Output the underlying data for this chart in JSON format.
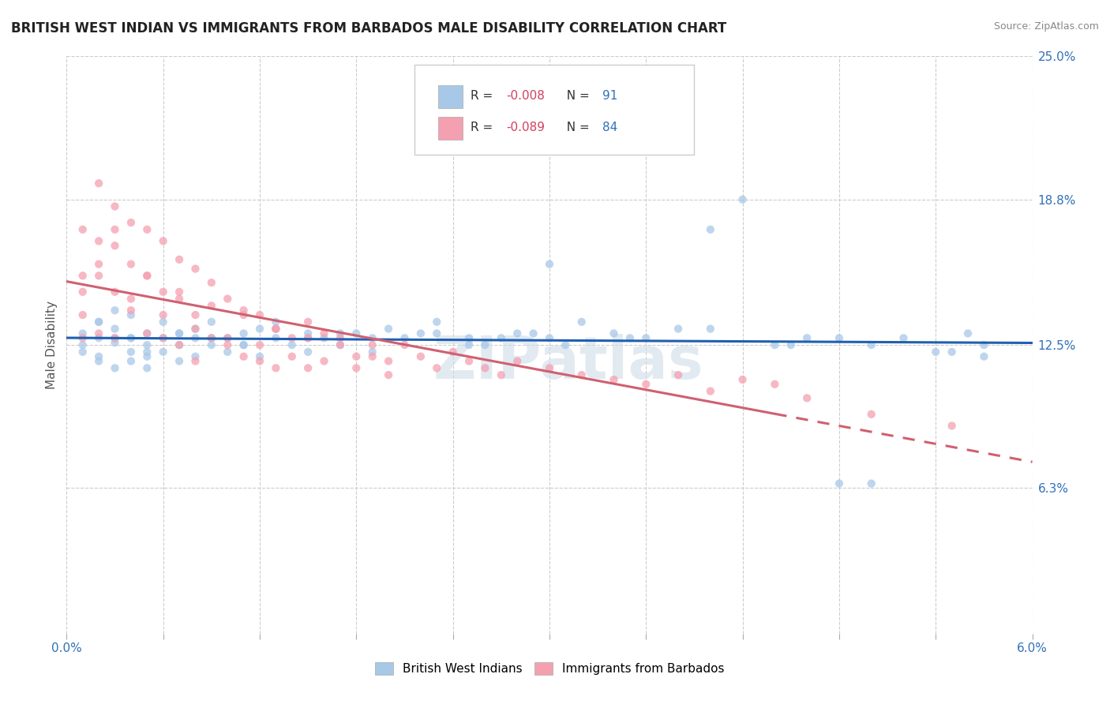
{
  "title": "BRITISH WEST INDIAN VS IMMIGRANTS FROM BARBADOS MALE DISABILITY CORRELATION CHART",
  "source": "Source: ZipAtlas.com",
  "ylabel": "Male Disability",
  "xmin": 0.0,
  "xmax": 0.06,
  "ymin": 0.0,
  "ymax": 0.25,
  "yticks": [
    0.0,
    0.063,
    0.125,
    0.188,
    0.25
  ],
  "ytick_labels": [
    "",
    "6.3%",
    "12.5%",
    "18.8%",
    "25.0%"
  ],
  "watermark": "ZIPatlas",
  "blue_line_color": "#2060b0",
  "pink_line_color": "#d06070",
  "blue_dot_color": "#a8c8e8",
  "pink_dot_color": "#f4a0b0",
  "grid_color": "#cccccc",
  "background_color": "#ffffff",
  "dot_size": 55,
  "dot_alpha": 0.75,
  "line_width": 2.2,
  "blue_scatter_x": [
    0.001,
    0.001,
    0.001,
    0.002,
    0.002,
    0.002,
    0.002,
    0.003,
    0.003,
    0.003,
    0.003,
    0.004,
    0.004,
    0.004,
    0.004,
    0.005,
    0.005,
    0.005,
    0.005,
    0.006,
    0.006,
    0.006,
    0.007,
    0.007,
    0.007,
    0.008,
    0.008,
    0.008,
    0.009,
    0.009,
    0.01,
    0.01,
    0.011,
    0.011,
    0.012,
    0.012,
    0.013,
    0.013,
    0.014,
    0.015,
    0.015,
    0.016,
    0.017,
    0.018,
    0.019,
    0.02,
    0.022,
    0.023,
    0.025,
    0.026,
    0.028,
    0.03,
    0.032,
    0.034,
    0.036,
    0.038,
    0.04,
    0.042,
    0.044,
    0.046,
    0.048,
    0.05,
    0.052,
    0.054,
    0.056,
    0.057,
    0.03,
    0.035,
    0.04,
    0.045,
    0.048,
    0.05,
    0.055,
    0.057,
    0.003,
    0.005,
    0.007,
    0.009,
    0.011,
    0.013,
    0.015,
    0.017,
    0.019,
    0.021,
    0.023,
    0.025,
    0.027,
    0.029,
    0.031,
    0.002,
    0.004
  ],
  "blue_scatter_y": [
    0.125,
    0.13,
    0.122,
    0.128,
    0.135,
    0.12,
    0.118,
    0.132,
    0.126,
    0.115,
    0.14,
    0.128,
    0.122,
    0.138,
    0.118,
    0.13,
    0.125,
    0.12,
    0.115,
    0.128,
    0.135,
    0.122,
    0.13,
    0.125,
    0.118,
    0.132,
    0.128,
    0.12,
    0.135,
    0.125,
    0.128,
    0.122,
    0.13,
    0.125,
    0.132,
    0.12,
    0.128,
    0.135,
    0.125,
    0.13,
    0.122,
    0.128,
    0.125,
    0.13,
    0.128,
    0.132,
    0.13,
    0.135,
    0.128,
    0.125,
    0.13,
    0.128,
    0.135,
    0.13,
    0.128,
    0.132,
    0.175,
    0.188,
    0.125,
    0.128,
    0.065,
    0.125,
    0.128,
    0.122,
    0.13,
    0.125,
    0.16,
    0.128,
    0.132,
    0.125,
    0.128,
    0.065,
    0.122,
    0.12,
    0.128,
    0.122,
    0.13,
    0.128,
    0.125,
    0.132,
    0.128,
    0.13,
    0.122,
    0.128,
    0.13,
    0.125,
    0.128,
    0.13,
    0.125,
    0.135,
    0.128
  ],
  "pink_scatter_x": [
    0.001,
    0.001,
    0.001,
    0.001,
    0.002,
    0.002,
    0.002,
    0.002,
    0.003,
    0.003,
    0.003,
    0.003,
    0.004,
    0.004,
    0.004,
    0.005,
    0.005,
    0.005,
    0.006,
    0.006,
    0.006,
    0.007,
    0.007,
    0.007,
    0.008,
    0.008,
    0.008,
    0.009,
    0.009,
    0.01,
    0.01,
    0.011,
    0.011,
    0.012,
    0.012,
    0.013,
    0.013,
    0.014,
    0.015,
    0.015,
    0.016,
    0.017,
    0.018,
    0.019,
    0.02,
    0.021,
    0.022,
    0.023,
    0.024,
    0.025,
    0.026,
    0.027,
    0.028,
    0.03,
    0.032,
    0.034,
    0.036,
    0.038,
    0.04,
    0.042,
    0.044,
    0.046,
    0.05,
    0.055,
    0.001,
    0.002,
    0.003,
    0.004,
    0.005,
    0.006,
    0.007,
    0.008,
    0.009,
    0.01,
    0.011,
    0.012,
    0.013,
    0.014,
    0.015,
    0.016,
    0.017,
    0.018,
    0.019,
    0.02
  ],
  "pink_scatter_y": [
    0.175,
    0.155,
    0.138,
    0.128,
    0.195,
    0.17,
    0.155,
    0.13,
    0.185,
    0.168,
    0.148,
    0.128,
    0.178,
    0.16,
    0.14,
    0.175,
    0.155,
    0.13,
    0.17,
    0.148,
    0.128,
    0.162,
    0.145,
    0.125,
    0.158,
    0.138,
    0.118,
    0.152,
    0.128,
    0.145,
    0.125,
    0.14,
    0.12,
    0.138,
    0.118,
    0.132,
    0.115,
    0.128,
    0.135,
    0.115,
    0.13,
    0.128,
    0.12,
    0.125,
    0.118,
    0.125,
    0.12,
    0.115,
    0.122,
    0.118,
    0.115,
    0.112,
    0.118,
    0.115,
    0.112,
    0.11,
    0.108,
    0.112,
    0.105,
    0.11,
    0.108,
    0.102,
    0.095,
    0.09,
    0.148,
    0.16,
    0.175,
    0.145,
    0.155,
    0.138,
    0.148,
    0.132,
    0.142,
    0.128,
    0.138,
    0.125,
    0.132,
    0.12,
    0.128,
    0.118,
    0.125,
    0.115,
    0.12,
    0.112
  ]
}
